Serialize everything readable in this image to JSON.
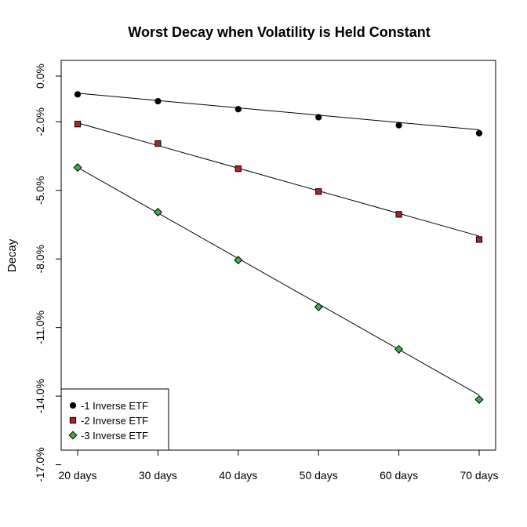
{
  "chart_data": {
    "type": "line",
    "title": "Worst Decay when Volatility is Held Constant",
    "xlabel": "",
    "ylabel": "Decay",
    "categories": [
      "20  days",
      "30  days",
      "40  days",
      "50  days",
      "60  days",
      "70  days"
    ],
    "x": [
      20,
      30,
      40,
      50,
      60,
      70
    ],
    "ylim": [
      -17.0,
      0.0
    ],
    "yticks": [
      0.0,
      -2.0,
      -5.0,
      -8.0,
      -11.0,
      -14.0,
      -17.0
    ],
    "ytick_labels": [
      "0.0%",
      "-2.0%",
      "-5.0%",
      "-8.0%",
      "-11.0%",
      "-14.0%",
      "-17.0%"
    ],
    "grid": false,
    "legend_position": "bottom-left",
    "series": [
      {
        "name": "-1 Inverse ETF",
        "marker": "circle",
        "color": "#000000",
        "values": [
          -0.8,
          -1.1,
          -1.45,
          -1.8,
          -2.15,
          -2.5
        ],
        "fit": [
          -0.75,
          -2.35
        ]
      },
      {
        "name": "-2 Inverse ETF",
        "marker": "square",
        "color": "#b22222",
        "values": [
          -2.1,
          -2.95,
          -4.05,
          -5.05,
          -6.05,
          -7.15
        ],
        "fit": [
          -2.05,
          -7.0
        ]
      },
      {
        "name": "-3 Inverse ETF",
        "marker": "diamond",
        "color": "#3cb043",
        "values": [
          -4.0,
          -5.95,
          -8.05,
          -10.1,
          -11.95,
          -14.15
        ],
        "fit": [
          -4.0,
          -13.95
        ]
      }
    ]
  }
}
